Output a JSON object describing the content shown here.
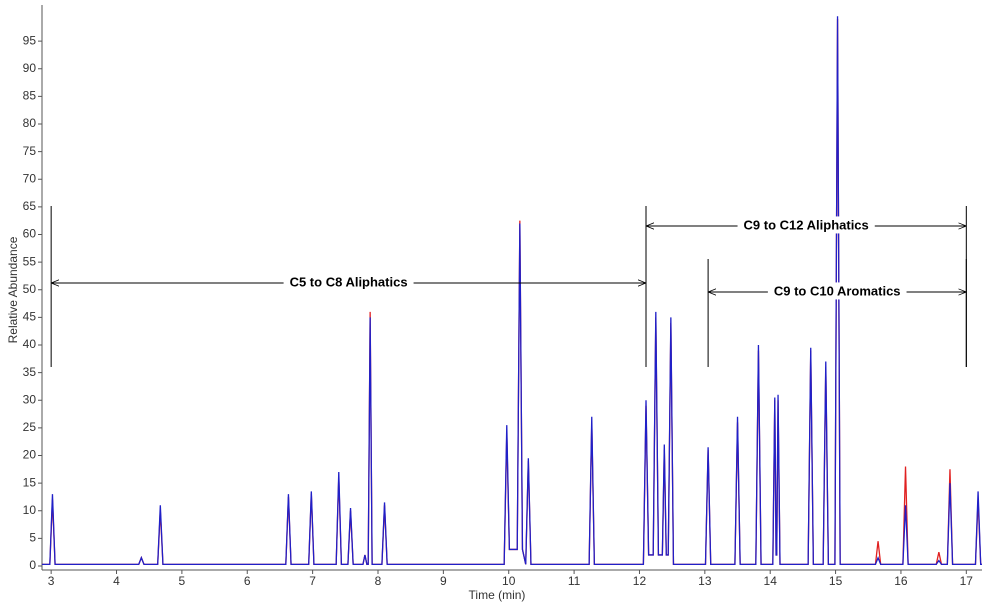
{
  "chart_data": {
    "type": "line",
    "x_label": "Time (min)",
    "y_label": "Relative Abundance",
    "xlim": [
      2.86,
      17.24
    ],
    "ylim": [
      0,
      100
    ],
    "xticks": [
      3,
      4,
      5,
      6,
      7,
      8,
      9,
      10,
      11,
      12,
      13,
      14,
      15,
      16,
      17
    ],
    "yticks": [
      0,
      5,
      10,
      15,
      20,
      25,
      30,
      35,
      40,
      45,
      50,
      55,
      60,
      65,
      70,
      75,
      80,
      85,
      90,
      95
    ],
    "x": [
      2.86,
      2.98,
      3.02,
      3.06,
      4.34,
      4.38,
      4.42,
      4.63,
      4.67,
      4.71,
      6.59,
      6.63,
      6.67,
      6.94,
      6.98,
      7.02,
      7.36,
      7.4,
      7.44,
      7.54,
      7.58,
      7.62,
      7.77,
      7.8,
      7.83,
      7.85,
      7.88,
      7.91,
      8.06,
      8.1,
      8.14,
      9.93,
      9.97,
      10.01,
      10.13,
      10.17,
      10.21,
      10.26,
      10.3,
      10.34,
      11.23,
      11.27,
      11.31,
      12.06,
      12.1,
      12.14,
      12.21,
      12.25,
      12.29,
      12.35,
      12.38,
      12.41,
      12.44,
      12.48,
      12.52,
      13.01,
      13.05,
      13.09,
      13.46,
      13.5,
      13.54,
      13.78,
      13.82,
      13.86,
      14.04,
      14.07,
      14.09,
      14.1,
      14.12,
      14.15,
      14.58,
      14.62,
      14.66,
      14.81,
      14.85,
      14.89,
      14.99,
      15.03,
      15.07,
      15.61,
      15.65,
      15.69,
      16.03,
      16.07,
      16.11,
      16.54,
      16.58,
      16.62,
      16.71,
      16.75,
      16.79,
      17.14,
      17.18,
      17.22,
      17.24
    ],
    "series": [
      {
        "color": "#e02020",
        "values": [
          0.3,
          0.3,
          12,
          0.3,
          0.3,
          1.5,
          0.3,
          0.3,
          10,
          0.3,
          0.3,
          12.5,
          0.3,
          0.3,
          13,
          0.3,
          0.3,
          16,
          0.3,
          0.3,
          10,
          0.3,
          0.3,
          2,
          0.3,
          0.3,
          46,
          0.3,
          0.3,
          11,
          0.3,
          0.3,
          24,
          3,
          3,
          62.5,
          3,
          0.3,
          19,
          0.3,
          0.3,
          26,
          0.3,
          0.3,
          29,
          2,
          2,
          45,
          2,
          2,
          21,
          2,
          2,
          44,
          0.3,
          0.3,
          21,
          0.3,
          0.3,
          26,
          0.3,
          0.3,
          39,
          0.3,
          0.3,
          30,
          2,
          2,
          30,
          0.3,
          0.3,
          39,
          0.3,
          0.3,
          36,
          0.3,
          0.3,
          99,
          0.3,
          0.3,
          4.5,
          0.3,
          0.3,
          18,
          0.3,
          0.3,
          2.5,
          0.3,
          0.3,
          17.5,
          0.3,
          0.3,
          12,
          0.3,
          0.3
        ]
      },
      {
        "color": "#2020c8",
        "values": [
          0.3,
          0.3,
          13,
          0.3,
          0.3,
          1.5,
          0.3,
          0.3,
          11,
          0.3,
          0.3,
          13,
          0.3,
          0.3,
          13.5,
          0.3,
          0.3,
          17,
          0.3,
          0.3,
          10.5,
          0.3,
          0.3,
          2,
          0.3,
          0.3,
          45,
          0.3,
          0.3,
          11.5,
          0.3,
          0.3,
          25.5,
          3,
          3,
          62,
          3,
          0.3,
          19.5,
          0.3,
          0.3,
          27,
          0.3,
          0.3,
          30,
          2,
          2,
          46,
          2,
          2,
          22,
          2,
          2,
          45,
          0.3,
          0.3,
          21.5,
          0.3,
          0.3,
          27,
          0.3,
          0.3,
          40,
          0.3,
          0.3,
          30.5,
          2,
          2,
          31,
          0.3,
          0.3,
          39.5,
          0.3,
          0.3,
          37,
          0.3,
          0.3,
          99.5,
          0.3,
          0.3,
          1.5,
          0.3,
          0.3,
          11,
          0.3,
          0.3,
          1,
          0.3,
          0.3,
          15,
          0.3,
          0.3,
          13.5,
          0.3,
          0.3
        ]
      }
    ],
    "annotations": [
      {
        "text": "C5 to C8 Aliphatics",
        "start": 3.0,
        "end": 12.1
      },
      {
        "text": "C9 to C12 Aliphatics",
        "start": 12.1,
        "end": 17.0
      },
      {
        "text": "C9 to C10 Aromatics",
        "start": 13.05,
        "end": 17.0
      }
    ]
  }
}
